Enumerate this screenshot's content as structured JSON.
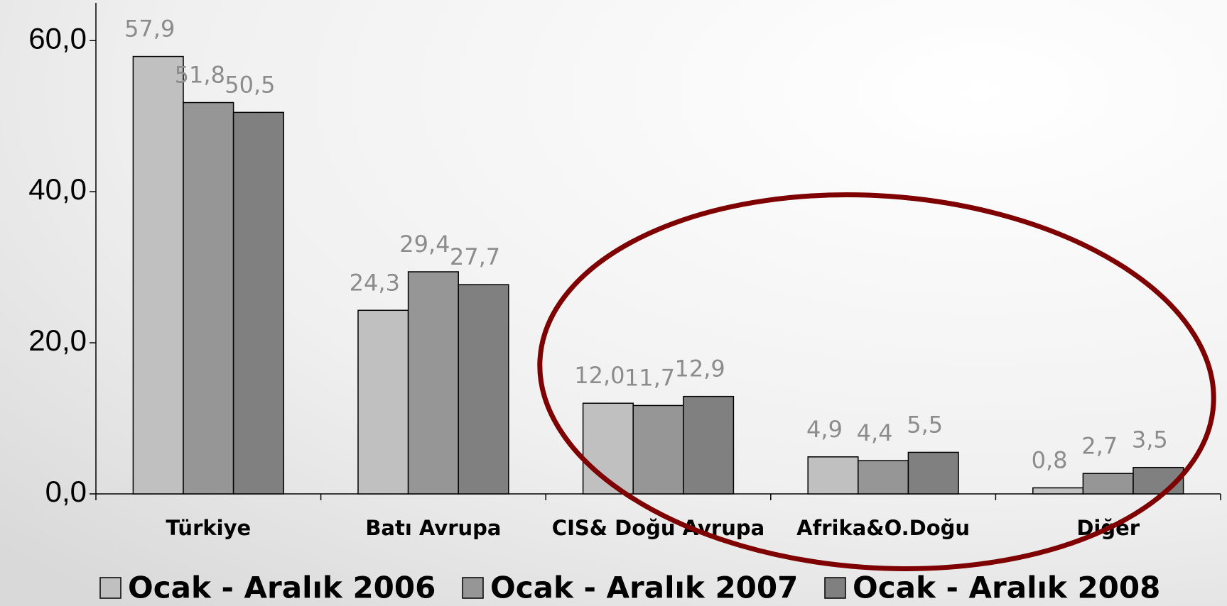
{
  "chart_data": {
    "type": "bar",
    "categories": [
      "Türkiye",
      "Batı Avrupa",
      "CIS& Doğu Avrupa",
      "Afrika&O.Doğu",
      "Diğer"
    ],
    "series": [
      {
        "name": "Ocak - Aralık 2006",
        "color": "#c0c0c0",
        "values": [
          57.9,
          24.3,
          12.0,
          4.9,
          0.8
        ],
        "value_labels": [
          "57,9",
          "24,3",
          "12,0",
          "4,9",
          "0,8"
        ]
      },
      {
        "name": "Ocak - Aralık 2007",
        "color": "#969696",
        "values": [
          51.8,
          29.4,
          11.7,
          4.4,
          2.7
        ],
        "value_labels": [
          "51,8",
          "29,4",
          "11,7",
          "4,4",
          "2,7"
        ]
      },
      {
        "name": "Ocak - Aralık 2008",
        "color": "#808080",
        "values": [
          50.5,
          27.7,
          12.9,
          5.5,
          3.5
        ],
        "value_labels": [
          "50,5",
          "27,7",
          "12,9",
          "5,5",
          "3,5"
        ]
      }
    ],
    "ylim": [
      0,
      65
    ],
    "yticks": [
      {
        "value": 0,
        "label": "0,0"
      },
      {
        "value": 20,
        "label": "20,0"
      },
      {
        "value": 40,
        "label": "40,0"
      },
      {
        "value": 60,
        "label": "60,0"
      }
    ],
    "legend": "bottom"
  }
}
